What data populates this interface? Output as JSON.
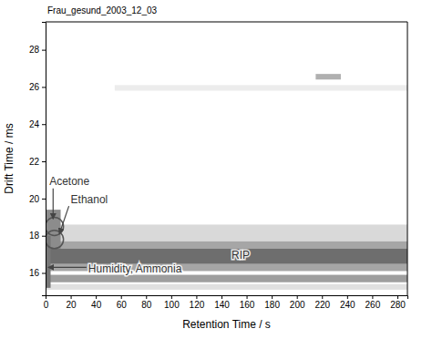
{
  "chart_data": {
    "type": "heatmap",
    "title": "Frau_gesund_2003_12_03",
    "x_label": "Retention Time / s",
    "y_label": "Drift Time / ms",
    "xlim": [
      0,
      288
    ],
    "ylim": [
      14.8,
      29.5
    ],
    "xticks": [
      0,
      20,
      40,
      60,
      80,
      100,
      120,
      140,
      160,
      180,
      200,
      220,
      240,
      260,
      280
    ],
    "yticks": [
      16,
      18,
      20,
      22,
      24,
      26,
      28
    ],
    "bands": [
      {
        "x": [
          0,
          288
        ],
        "y": [
          17.7,
          18.6
        ],
        "color": "#d9d9d9"
      },
      {
        "x": [
          0,
          288
        ],
        "y": [
          16.1,
          17.7
        ],
        "color": "#a6a6a6"
      },
      {
        "x": [
          0,
          288
        ],
        "y": [
          16.5,
          17.3
        ],
        "color": "#6e6e6e"
      },
      {
        "x": [
          0,
          288
        ],
        "y": [
          15.5,
          15.9
        ],
        "color": "#9e9e9e"
      },
      {
        "x": [
          0,
          288
        ],
        "y": [
          15.1,
          15.4
        ],
        "color": "#e0e0e0"
      },
      {
        "x": [
          0,
          12
        ],
        "y": [
          17.3,
          19.4
        ],
        "color": "#8c8c8c"
      },
      {
        "x": [
          0,
          4
        ],
        "y": [
          15.2,
          18
        ],
        "color": "#777777"
      },
      {
        "x": [
          55,
          288
        ],
        "y": [
          25.8,
          26.1
        ],
        "color": "#ececec"
      },
      {
        "x": [
          215,
          235
        ],
        "y": [
          26.4,
          26.7
        ],
        "color": "#b0b0b0"
      }
    ],
    "circles": [
      {
        "x": 7,
        "y": 18.5
      },
      {
        "x": 7,
        "y": 17.8
      }
    ],
    "annotations": [
      {
        "text": "Acetone",
        "x": 3,
        "y": 20.9,
        "point": [
          6,
          18.9
        ]
      },
      {
        "text": "Ethanol",
        "x": 20,
        "y": 19.9,
        "point": [
          11,
          18.1
        ]
      },
      {
        "text": "RIP",
        "x": 148,
        "y": 16.9
      },
      {
        "text": "Humidity, Ammonia",
        "x": 34,
        "y": 16.2,
        "point": [
          2,
          16.3
        ]
      }
    ]
  }
}
